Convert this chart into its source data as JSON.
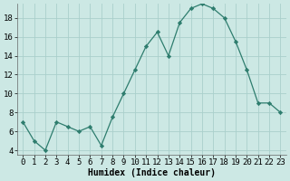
{
  "x": [
    0,
    1,
    2,
    3,
    4,
    5,
    6,
    7,
    8,
    9,
    10,
    11,
    12,
    13,
    14,
    15,
    16,
    17,
    18,
    19,
    20,
    21,
    22,
    23
  ],
  "y": [
    7,
    5,
    4,
    7,
    6.5,
    6,
    6.5,
    4.5,
    7.5,
    10,
    12.5,
    15,
    16.5,
    14,
    17.5,
    19,
    19.5,
    19,
    18,
    15.5,
    12.5,
    9,
    9,
    8
  ],
  "line_color": "#2e7d6e",
  "marker_style": "D",
  "marker_size": 2.2,
  "bg_color": "#cce8e4",
  "grid_color": "#aacfcb",
  "xlabel": "Humidex (Indice chaleur)",
  "ylim": [
    3.5,
    19.5
  ],
  "yticks": [
    4,
    6,
    8,
    10,
    12,
    14,
    16,
    18
  ],
  "xticks": [
    0,
    1,
    2,
    3,
    4,
    5,
    6,
    7,
    8,
    9,
    10,
    11,
    12,
    13,
    14,
    15,
    16,
    17,
    18,
    19,
    20,
    21,
    22,
    23
  ],
  "xlabel_fontsize": 7,
  "tick_fontsize": 6.5
}
